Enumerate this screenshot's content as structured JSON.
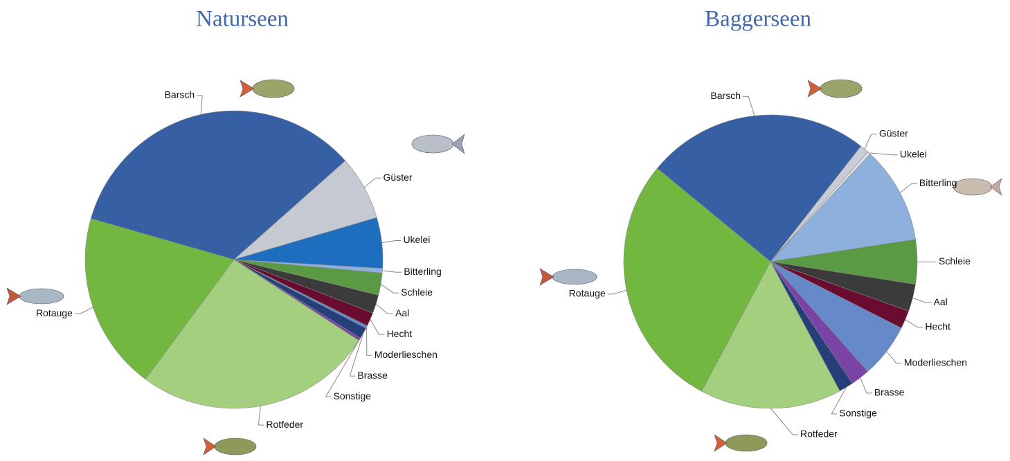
{
  "chart_data": [
    {
      "type": "pie",
      "title": "Naturseen",
      "categories": [
        "Barsch",
        "Güster",
        "Ukelei",
        "Bitterling",
        "Schleie",
        "Aal",
        "Hecht",
        "Moderlieschen",
        "Brasse",
        "Sonstige",
        "Rotfeder",
        "Rotauge"
      ],
      "values": [
        34,
        7,
        5.5,
        0.5,
        2.4,
        2,
        1.5,
        0.3,
        1.2,
        0.3,
        26,
        19.3
      ],
      "colors": [
        "#365fa4",
        "#c4c9d2",
        "#1e6ec0",
        "#8eb0dd",
        "#5a9a44",
        "#3b3b3b",
        "#6a0c30",
        "#6689c9",
        "#253f78",
        "#7a44a6",
        "#a3cf7f",
        "#72b840"
      ],
      "startangle": 286
    },
    {
      "type": "pie",
      "title": "Baggerseen",
      "categories": [
        "Barsch",
        "Güster",
        "Ukelei",
        "Bitterling",
        "Schleie",
        "Aal",
        "Hecht",
        "Moderlieschen",
        "Brasse",
        "Sonstige",
        "Rotfeder",
        "Rotauge"
      ],
      "values": [
        24.6,
        1,
        0.3,
        10.7,
        4.9,
        3,
        2,
        6,
        2.1,
        1.6,
        15.6,
        28.2
      ],
      "colors": [
        "#365fa4",
        "#c8ccd4",
        "#e4e6ea",
        "#8eb0dd",
        "#5a9a44",
        "#3b3b3b",
        "#6a0c30",
        "#6689c9",
        "#7a44a6",
        "#253f78",
        "#a3cf7f",
        "#72b840"
      ],
      "startangle": 309.5
    }
  ]
}
